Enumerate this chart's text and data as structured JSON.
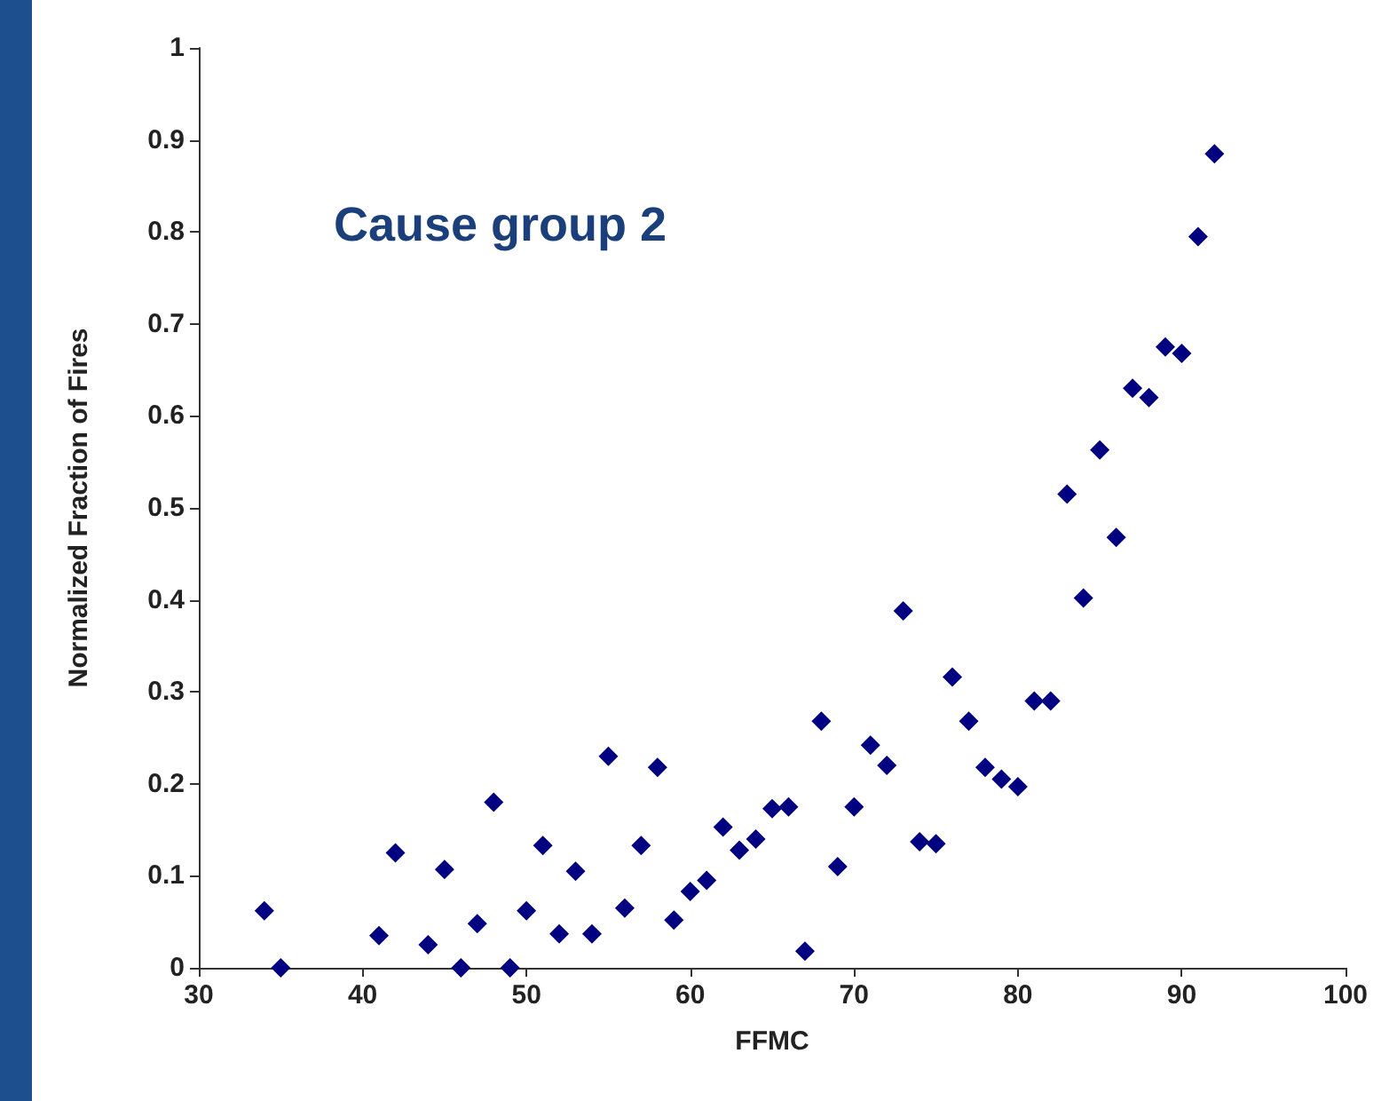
{
  "chart_data": {
    "type": "scatter",
    "title": "Cause group 2",
    "xlabel": "FFMC",
    "ylabel": "Normalized Fraction of Fires",
    "x": [
      34,
      35,
      41,
      42,
      44,
      45,
      46,
      47,
      48,
      49,
      50,
      51,
      52,
      53,
      54,
      55,
      56,
      57,
      58,
      59,
      60,
      61,
      62,
      63,
      64,
      65,
      66,
      67,
      68,
      69,
      70,
      71,
      72,
      73,
      74,
      75,
      76,
      77,
      78,
      79,
      80,
      81,
      82,
      83,
      84,
      85,
      86,
      87,
      88,
      89,
      90,
      91,
      92
    ],
    "series": [
      {
        "color": "#000080",
        "values": [
          0.062,
          0,
          0.035,
          0.125,
          0.025,
          0.107,
          0,
          0.048,
          0.18,
          0,
          0.062,
          0.133,
          0.037,
          0.105,
          0.037,
          0.23,
          0.065,
          0.133,
          0.218,
          0.052,
          0.083,
          0.095,
          0.153,
          0.128,
          0.14,
          0.173,
          0.175,
          0.018,
          0.268,
          0.11,
          0.175,
          0.242,
          0.22,
          0.388,
          0.137,
          0.135,
          0.316,
          0.268,
          0.218,
          0.205,
          0.197,
          0.29,
          0.29,
          0.515,
          0.402,
          0.563,
          0.468,
          0.63,
          0.62,
          0.675,
          0.668,
          0.795,
          0.885
        ]
      }
    ],
    "xlim": [
      30,
      100
    ],
    "xticks": [
      30,
      40,
      50,
      60,
      70,
      80,
      90,
      100
    ],
    "ylim": [
      0,
      1
    ],
    "yticks": [
      0,
      0.1,
      0.2,
      0.3,
      0.4,
      0.5,
      0.6,
      0.7,
      0.8,
      0.9,
      1
    ],
    "marker": "diamond"
  }
}
